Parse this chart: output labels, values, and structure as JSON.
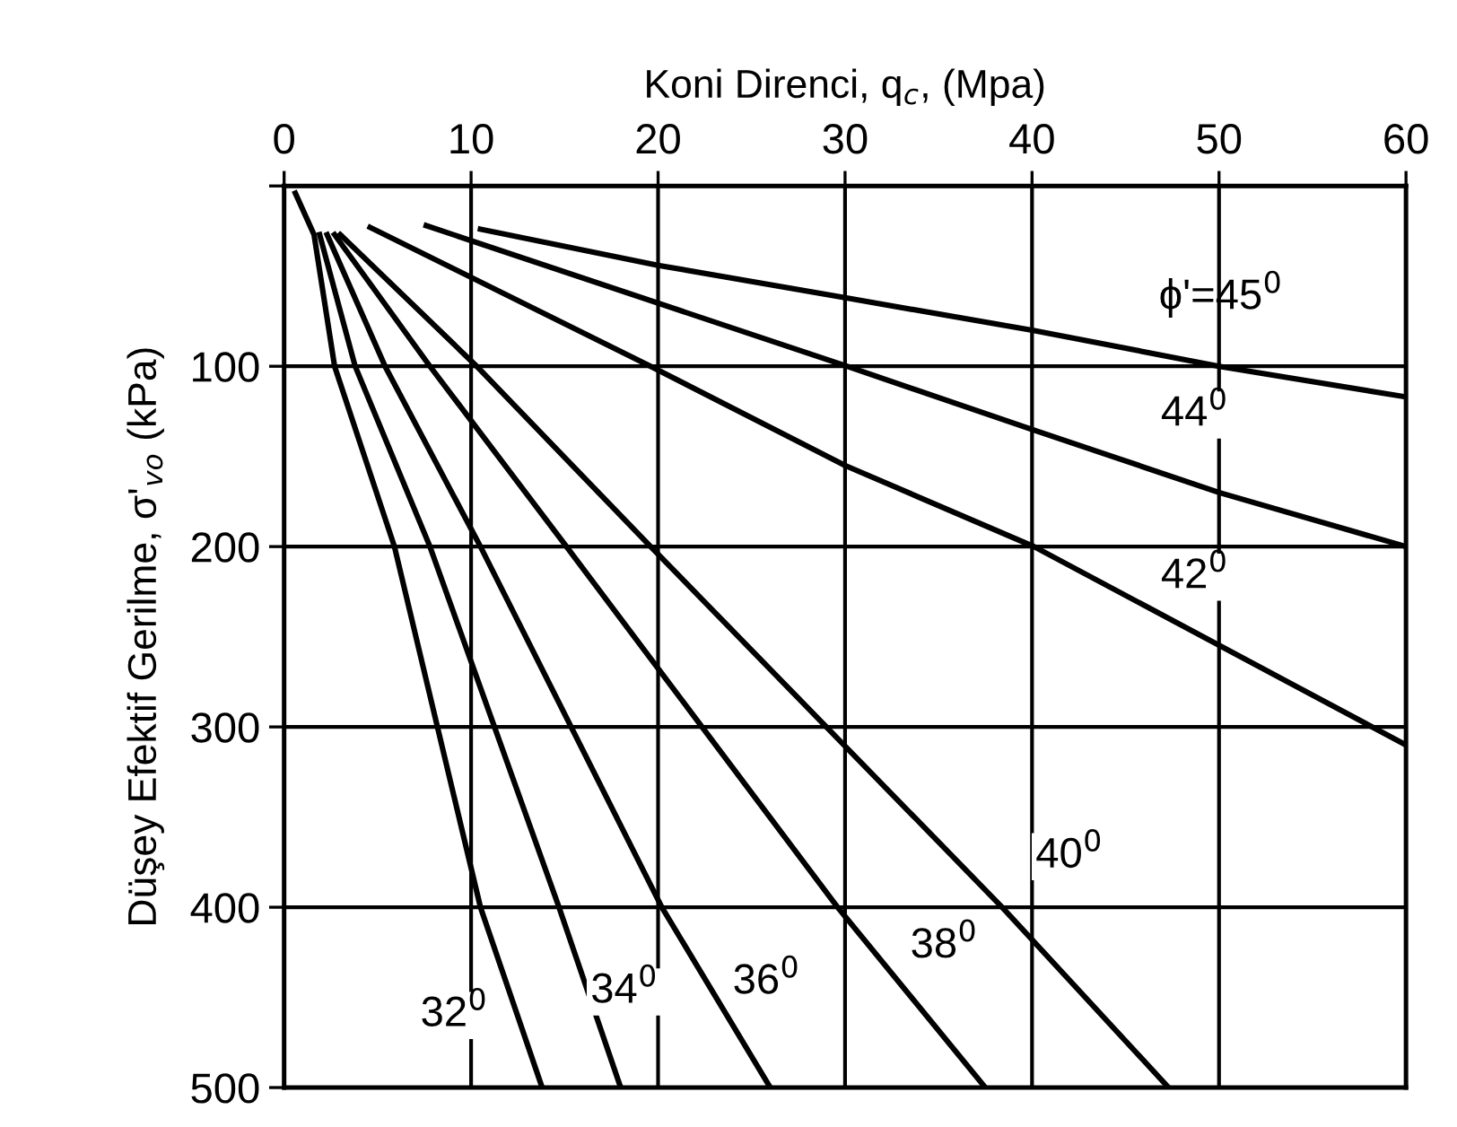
{
  "chart_data": {
    "type": "line",
    "xlabel": "Koni Direnci, q$_{c}$, (Mpa)",
    "ylabel": "Düşey Efektif Gerilme, σ'$_{vo}$ (kPa)",
    "xlim": [
      0,
      60
    ],
    "xticks": [
      0,
      10,
      20,
      30,
      40,
      50,
      60
    ],
    "ylim": [
      500,
      0
    ],
    "yticks": [
      {
        "value": 0,
        "label": null
      },
      100,
      200,
      300,
      400,
      500
    ],
    "grid": true,
    "marker": "none",
    "line_style": "solid",
    "series": [
      {
        "color": "#000000",
        "x": [
          0.6,
          1.6,
          2.7,
          5.9,
          10.5,
          13.8
        ],
        "values": [
          4,
          27,
          100,
          200,
          400,
          500
        ]
      },
      {
        "color": "#000000",
        "x": [
          1.9,
          3.8,
          7.8,
          14.7,
          18.0
        ],
        "values": [
          27,
          100,
          200,
          400,
          500
        ]
      },
      {
        "color": "#000000",
        "x": [
          2.3,
          5.4,
          10.5,
          20.2,
          26.0
        ],
        "values": [
          27,
          100,
          200,
          400,
          500
        ]
      },
      {
        "color": "#000000",
        "x": [
          2.7,
          7.8,
          15.1,
          29.6,
          37.5
        ],
        "values": [
          27,
          100,
          200,
          400,
          500
        ]
      },
      {
        "color": "#000000",
        "x": [
          3.0,
          10.3,
          19.6,
          38.4,
          47.3
        ],
        "values": [
          27,
          100,
          200,
          400,
          500
        ]
      },
      {
        "color": "#000000",
        "x": [
          4.6,
          19.6,
          30,
          40.1,
          60
        ],
        "values": [
          23,
          100,
          155,
          200,
          310
        ]
      },
      {
        "color": "#000000",
        "x": [
          7.6,
          30.1,
          40,
          50,
          60
        ],
        "values": [
          22,
          100,
          135,
          170,
          200
        ]
      },
      {
        "name": "ϕ'=45$^{0}$",
        "color": "#000000",
        "x": [
          10.5,
          20,
          30,
          40,
          50,
          60
        ],
        "values": [
          24,
          44,
          62,
          80,
          100,
          117
        ]
      }
    ],
    "annotations": [
      {
        "text": "32$^{0}$",
        "x": 9.1,
        "y": 460
      },
      {
        "text": "34$^{0}$",
        "x": 18.2,
        "y": 447
      },
      {
        "text": "36$^{0}$",
        "x": 25.8,
        "y": 442
      },
      {
        "text": "38$^{0}$",
        "x": 35.3,
        "y": 422
      },
      {
        "text": "40$^{0}$",
        "x": 42,
        "y": 372
      },
      {
        "text": "42$^{0}$",
        "x": 48.7,
        "y": 217
      },
      {
        "text": "44$^{0}$",
        "x": 48.7,
        "y": 127
      }
    ]
  }
}
